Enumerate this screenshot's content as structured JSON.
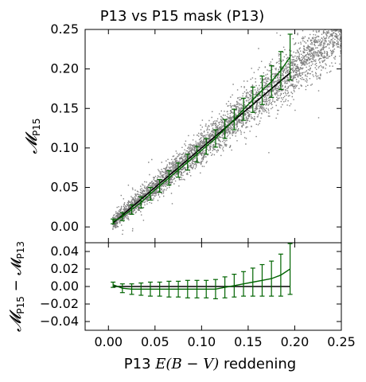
{
  "chart_data": [
    {
      "type": "scatter",
      "title": "P13 vs P15 mask (P13)",
      "ylabel": "𝓜",
      "ylabel_sub": "P15",
      "xlim": [
        -0.025,
        0.25
      ],
      "ylim": [
        -0.02,
        0.25
      ],
      "xticks": [],
      "yticks": [
        0.0,
        0.05,
        0.1,
        0.15,
        0.2,
        0.25
      ],
      "ytick_labels": [
        "0.00",
        "0.05",
        "0.10",
        "0.15",
        "0.20",
        "0.25"
      ],
      "grid": false,
      "colors": {
        "scatter": "#808080",
        "mean": "#006400",
        "fit": "#000000"
      },
      "scatter_density": "dense grey point cloud along the diagonal",
      "fit_line": {
        "x": [
          0.005,
          0.195
        ],
        "y": [
          0.005,
          0.195
        ]
      },
      "binned_mean": {
        "x": [
          0.005,
          0.015,
          0.025,
          0.035,
          0.045,
          0.055,
          0.065,
          0.075,
          0.085,
          0.095,
          0.105,
          0.115,
          0.125,
          0.135,
          0.145,
          0.155,
          0.165,
          0.175,
          0.185,
          0.195
        ],
        "y": [
          0.007,
          0.013,
          0.022,
          0.031,
          0.042,
          0.052,
          0.062,
          0.072,
          0.082,
          0.092,
          0.102,
          0.112,
          0.124,
          0.136,
          0.149,
          0.161,
          0.173,
          0.184,
          0.198,
          0.215
        ],
        "err": [
          0.003,
          0.005,
          0.006,
          0.007,
          0.008,
          0.008,
          0.009,
          0.009,
          0.01,
          0.01,
          0.01,
          0.011,
          0.012,
          0.013,
          0.014,
          0.016,
          0.018,
          0.02,
          0.024,
          0.029
        ]
      }
    },
    {
      "type": "line",
      "ylabel": "𝓜",
      "ylabel_sub1": "P15",
      "ylabel_mid": " − 𝓜",
      "ylabel_sub2": "P13",
      "xlabel_prefix": "P13 ",
      "xlabel_math": "E(B − V)",
      "xlabel_suffix": " reddening",
      "xlim": [
        -0.025,
        0.25
      ],
      "ylim": [
        -0.05,
        0.05
      ],
      "xticks": [
        0.0,
        0.05,
        0.1,
        0.15,
        0.2,
        0.25
      ],
      "xtick_labels": [
        "0.00",
        "0.05",
        "0.10",
        "0.15",
        "0.20",
        "0.25"
      ],
      "yticks": [
        -0.04,
        -0.02,
        0.0,
        0.02,
        0.04
      ],
      "ytick_labels": [
        "−0.04",
        "−0.02",
        "0.00",
        "0.02",
        "0.04"
      ],
      "zero_line": {
        "x": [
          0.005,
          0.195
        ],
        "y": [
          0.0,
          0.0
        ]
      },
      "residual": {
        "x": [
          0.005,
          0.015,
          0.025,
          0.035,
          0.045,
          0.055,
          0.065,
          0.075,
          0.085,
          0.095,
          0.105,
          0.115,
          0.125,
          0.135,
          0.145,
          0.155,
          0.165,
          0.175,
          0.185,
          0.195
        ],
        "y": [
          0.002,
          -0.002,
          -0.003,
          -0.003,
          -0.003,
          -0.003,
          -0.003,
          -0.003,
          -0.003,
          -0.003,
          -0.003,
          -0.003,
          -0.001,
          0.001,
          0.003,
          0.005,
          0.007,
          0.009,
          0.013,
          0.02
        ],
        "err": [
          0.003,
          0.005,
          0.006,
          0.007,
          0.008,
          0.008,
          0.009,
          0.009,
          0.01,
          0.01,
          0.01,
          0.011,
          0.012,
          0.013,
          0.014,
          0.016,
          0.018,
          0.02,
          0.024,
          0.029
        ]
      }
    }
  ]
}
